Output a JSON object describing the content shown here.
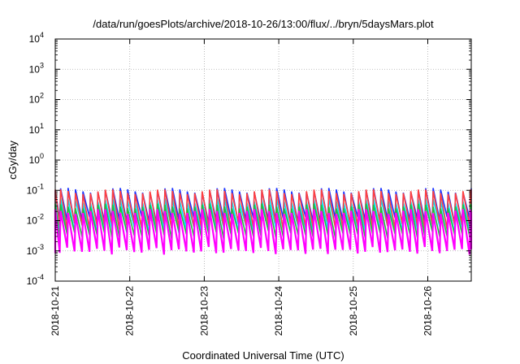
{
  "chart_data": {
    "type": "line",
    "title": "/data/run/goesPlots/archive/2018-10-26/13:00/flux/../bryn/5daysMars.plot",
    "xlabel": "Coordinated Universal Time (UTC)",
    "ylabel": "cGy/day",
    "y_scale": "log",
    "ylim": [
      0.0001,
      10000
    ],
    "xlim": [
      "2018-10-21T00:00",
      "2018-10-26T14:00"
    ],
    "x_tick_labels": [
      "2018-10-21",
      "2018-10-22",
      "2018-10-23",
      "2018-10-24",
      "2018-10-25",
      "2018-10-26"
    ],
    "y_tick_labels": [
      {
        "base": "10",
        "exp": "-4"
      },
      {
        "base": "10",
        "exp": "-3"
      },
      {
        "base": "10",
        "exp": "-2"
      },
      {
        "base": "10",
        "exp": "-1"
      },
      {
        "base": "10",
        "exp": "0"
      },
      {
        "base": "10",
        "exp": "1"
      },
      {
        "base": "10",
        "exp": "2"
      },
      {
        "base": "10",
        "exp": "3"
      },
      {
        "base": "10",
        "exp": "4"
      }
    ],
    "grid": true,
    "legend": "none",
    "sawtooth": {
      "period_hours": 2.4,
      "note_visible_pattern": "repeating sawtooth: sharp rise then decay"
    },
    "series": [
      {
        "color": "#1a33ff",
        "peak": 0.1,
        "trough": 0.012
      },
      {
        "color": "#00e5ff",
        "peak": 0.045,
        "trough": 0.006
      },
      {
        "color": "#ff4040",
        "peak": 0.09,
        "trough": 0.008
      },
      {
        "color": "#20c040",
        "peak": 0.03,
        "trough": 0.004
      },
      {
        "color": "#ff00ff",
        "peak": 0.02,
        "trough": 0.0012
      }
    ]
  }
}
